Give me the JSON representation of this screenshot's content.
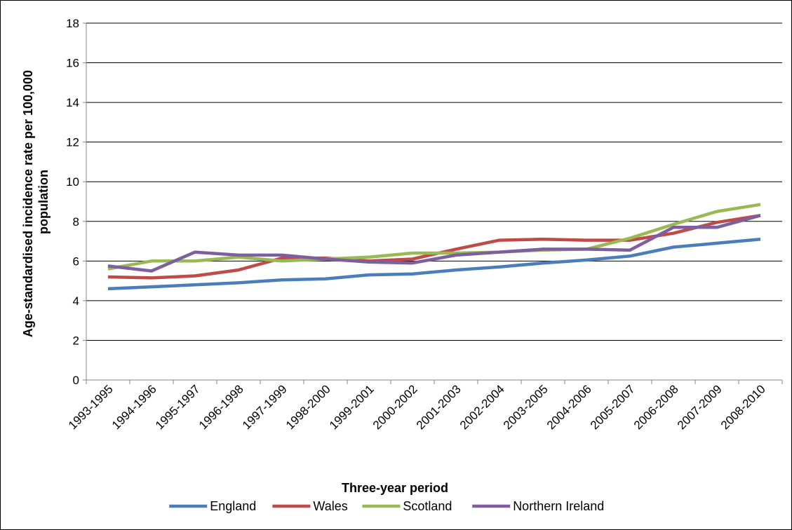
{
  "chart_data": {
    "type": "line",
    "title": "",
    "xlabel": "Three-year period",
    "ylabel_lines": [
      "Age-standardised incidence rate per 100,000",
      "population"
    ],
    "ylim": [
      0,
      18
    ],
    "yticks": [
      0,
      2,
      4,
      6,
      8,
      10,
      12,
      14,
      16,
      18
    ],
    "ytick_labels": [
      "0",
      "2",
      "4",
      "6",
      "8",
      "10",
      "12",
      "14",
      "16",
      "18"
    ],
    "grid": true,
    "legend_position": "bottom",
    "categories": [
      "1993-1995",
      "1994-1996",
      "1995-1997",
      "1996-1998",
      "1997-1999",
      "1998-2000",
      "1999-2001",
      "2000-2002",
      "2001-2003",
      "2002-2004",
      "2003-2005",
      "2004-2006",
      "2005-2007",
      "2006-2008",
      "2007-2009",
      "2008-2010"
    ],
    "series": [
      {
        "name": "England",
        "color": "#4A7EBB",
        "values": [
          4.6,
          4.7,
          4.8,
          4.9,
          5.05,
          5.1,
          5.3,
          5.35,
          5.55,
          5.7,
          5.9,
          6.05,
          6.25,
          6.7,
          6.9,
          7.1
        ]
      },
      {
        "name": "Wales",
        "color": "#BE4B48",
        "values": [
          5.2,
          5.15,
          5.25,
          5.55,
          6.15,
          6.15,
          6.0,
          6.1,
          6.6,
          7.05,
          7.1,
          7.05,
          7.05,
          7.4,
          7.95,
          8.3
        ]
      },
      {
        "name": "Scotland",
        "color": "#98B954",
        "values": [
          5.6,
          6.0,
          6.0,
          6.2,
          6.0,
          6.1,
          6.2,
          6.4,
          6.4,
          6.45,
          6.55,
          6.6,
          7.15,
          7.85,
          8.5,
          8.85
        ]
      },
      {
        "name": "Northern Ireland",
        "color": "#7D5FA0",
        "values": [
          5.75,
          5.5,
          6.45,
          6.3,
          6.3,
          6.1,
          5.95,
          5.9,
          6.3,
          6.45,
          6.6,
          6.6,
          6.55,
          7.7,
          7.7,
          8.3
        ]
      }
    ]
  }
}
